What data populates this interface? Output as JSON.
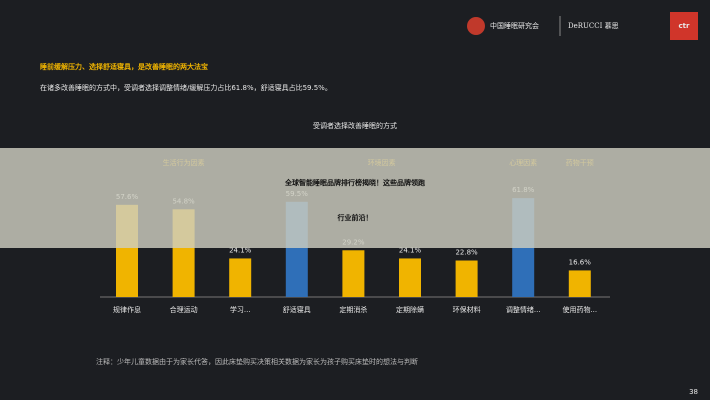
{
  "chart_data": {
    "type": "bar",
    "title": "受调者选择改善睡眠的方式",
    "categories": [
      "规律作息",
      "合理运动",
      "学习...",
      "舒适寝具",
      "定期消杀",
      "定期除螨",
      "环保材料",
      "调整情绪...",
      "使用药物..."
    ],
    "values": [
      57.6,
      54.8,
      24.1,
      59.5,
      29.2,
      24.1,
      22.8,
      61.8,
      16.6
    ],
    "value_labels": [
      "57.6%",
      "54.8%",
      "24.1%",
      "59.5%",
      "29.2%",
      "24.1%",
      "22.8%",
      "61.8%",
      "16.6%"
    ],
    "colors": [
      "#f0b400",
      "#f0b400",
      "#f0b400",
      "#2f6fb8",
      "#f0b400",
      "#f0b400",
      "#f0b400",
      "#2f6fb8",
      "#f0b400"
    ],
    "category_groups": [
      "生活行为因素",
      "生活行为因素",
      "生活行为因素",
      "环境因素",
      "环境因素",
      "环境因素",
      "环境因素",
      "心理因素",
      "药物干预"
    ]
  },
  "slide": {
    "logo_org": "中国睡眠研究会",
    "logo_brand": "DeRUCCI 慕思",
    "logo_ctr": "ctr",
    "heading": "睡前缓解压力、选择舒适寝具，是改善睡眠的两大法宝",
    "subheading": "在诸多改善睡眠的方式中，受调者选择调整情绪/缓解压力占比61.8%，舒适寝具占比59.5%。",
    "footnote": "注释：少年儿童数据由于为家长代答，因此床垫购买决策相关数据为家长为孩子购买床垫时的想法与判断",
    "page_number": "38"
  },
  "banner": {
    "lines": [
      "全球智能睡眠品牌排行榜揭晓！这些品牌领跑",
      "行业前沿！"
    ]
  }
}
